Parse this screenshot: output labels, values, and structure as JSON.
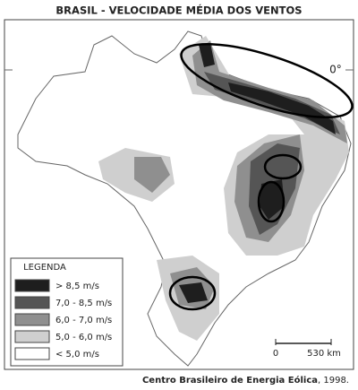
{
  "title": "BRASIL - VELOCIDADE MÉDIA DOS VENTOS",
  "equator_label": "0°",
  "legend": {
    "title": "LEGENDA",
    "items": [
      {
        "label": "> 8,5  m/s",
        "color": "#1e1e1e"
      },
      {
        "label": "7,0 - 8,5  m/s",
        "color": "#555555"
      },
      {
        "label": "6,0 - 7,0  m/s",
        "color": "#8f8f8f"
      },
      {
        "label": "5,0 - 6,0  m/s",
        "color": "#cfcfcf"
      },
      {
        "label": "< 5,0 m/s",
        "color": "#ffffff"
      }
    ]
  },
  "scale": {
    "start": "0",
    "end": "530 km"
  },
  "source": {
    "text": "Centro Brasileiro de Energia Eólica",
    "year": ", 1998."
  }
}
